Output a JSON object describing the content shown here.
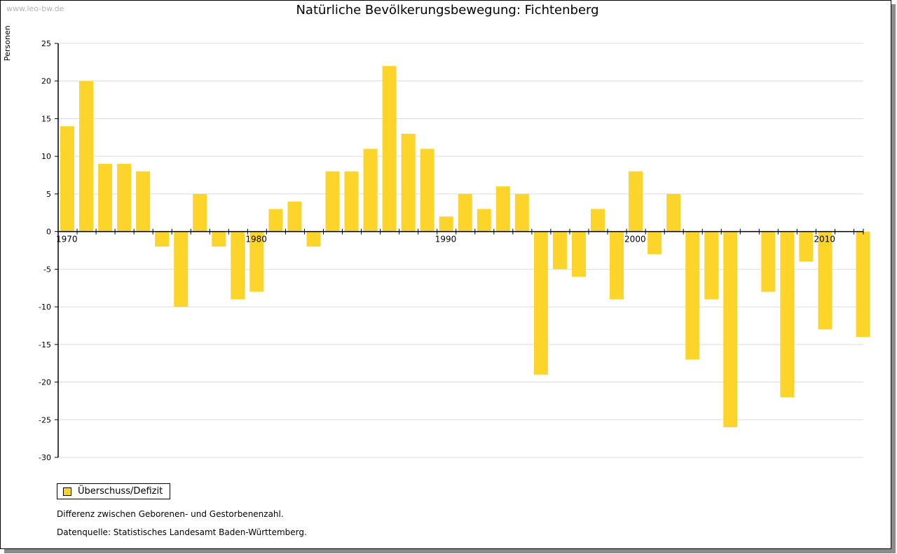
{
  "watermark": "www.leo-bw.de",
  "chart_data": {
    "type": "bar",
    "title": "Natürliche Bevölkerungsbewegung: Fichtenberg",
    "ylabel": "Personen",
    "xlabel": "",
    "ylim": [
      -30,
      25
    ],
    "yticks": [
      25,
      20,
      15,
      10,
      5,
      0,
      -5,
      -10,
      -15,
      -20,
      -25,
      -30
    ],
    "xtick_labels": [
      "1970",
      "1980",
      "1990",
      "2000",
      "2010"
    ],
    "grid": true,
    "color": "#fdd52a",
    "series": [
      {
        "name": "Überschuss/Defizit",
        "x": [
          1970,
          1971,
          1972,
          1973,
          1974,
          1975,
          1976,
          1977,
          1978,
          1979,
          1980,
          1981,
          1982,
          1983,
          1984,
          1985,
          1986,
          1987,
          1988,
          1989,
          1990,
          1991,
          1992,
          1993,
          1994,
          1995,
          1996,
          1997,
          1998,
          1999,
          2000,
          2001,
          2002,
          2003,
          2004,
          2005,
          2006,
          2007,
          2008,
          2009,
          2010,
          2011,
          2012
        ],
        "values": [
          14,
          20,
          9,
          9,
          8,
          -2,
          -10,
          5,
          -2,
          -9,
          -8,
          3,
          4,
          -2,
          8,
          8,
          11,
          22,
          13,
          11,
          2,
          5,
          3,
          6,
          5,
          -19,
          -5,
          -6,
          3,
          -9,
          8,
          -3,
          5,
          -17,
          -9,
          -26,
          0,
          -8,
          -22,
          -4,
          -13,
          0,
          -14
        ]
      }
    ]
  },
  "legend": {
    "label": "Überschuss/Defizit"
  },
  "notes": {
    "difference": "Differenz zwischen Geborenen- und Gestorbenenzahl.",
    "source": "Datenquelle: Statistisches Landesamt Baden-Württemberg."
  }
}
